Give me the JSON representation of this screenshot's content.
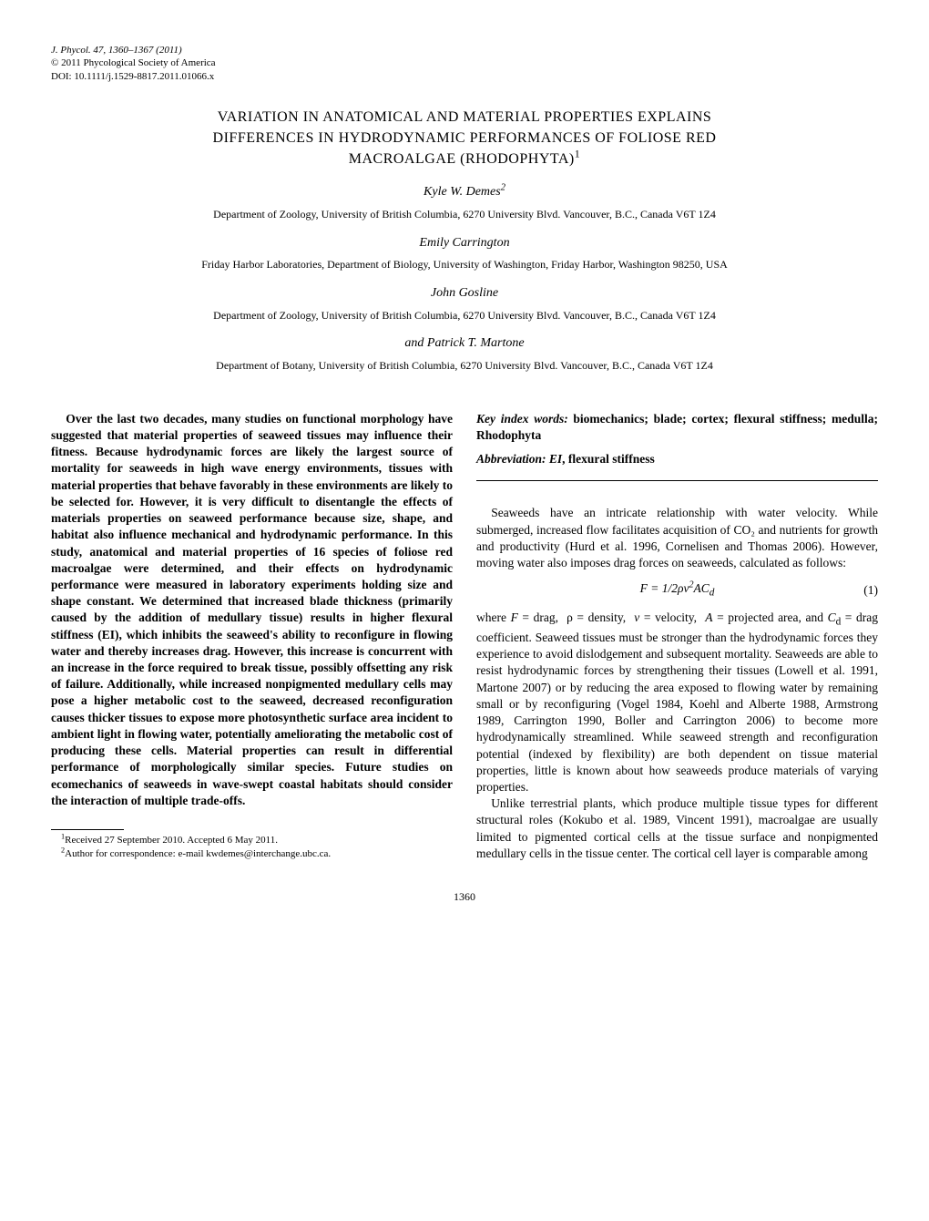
{
  "journal": {
    "citation": "J. Phycol. 47, 1360–1367 (2011)",
    "copyright": "© 2011 Phycological Society of America",
    "doi": "DOI: 10.1111/j.1529-8817.2011.01066.x"
  },
  "title_line1": "VARIATION IN ANATOMICAL AND MATERIAL PROPERTIES EXPLAINS",
  "title_line2": "DIFFERENCES IN HYDRODYNAMIC PERFORMANCES OF FOLIOSE RED",
  "title_line3": "MACROALGAE (RHODOPHYTA)",
  "title_sup": "1",
  "authors": [
    {
      "name": "Kyle W. Demes",
      "sup": "2",
      "affiliation": "Department of Zoology, University of British Columbia, 6270 University Blvd. Vancouver, B.C., Canada V6T 1Z4"
    },
    {
      "name": "Emily Carrington",
      "affiliation": "Friday Harbor Laboratories, Department of Biology, University of Washington, Friday Harbor, Washington 98250, USA"
    },
    {
      "name": "John Gosline",
      "affiliation": "Department of Zoology, University of British Columbia, 6270 University Blvd. Vancouver, B.C., Canada V6T 1Z4"
    }
  ],
  "last_author_connector": "and Patrick T. Martone",
  "last_affiliation": "Department of Botany, University of British Columbia, 6270 University Blvd. Vancouver, B.C., Canada V6T 1Z4",
  "abstract": "Over the last two decades, many studies on functional morphology have suggested that material properties of seaweed tissues may influence their fitness. Because hydrodynamic forces are likely the largest source of mortality for seaweeds in high wave energy environments, tissues with material properties that behave favorably in these environments are likely to be selected for. However, it is very difficult to disentangle the effects of materials properties on seaweed performance because size, shape, and habitat also influence mechanical and hydrodynamic performance. In this study, anatomical and material properties of 16 species of foliose red macroalgae were determined, and their effects on hydrodynamic performance were measured in laboratory experiments holding size and shape constant. We determined that increased blade thickness (primarily caused by the addition of medullary tissue) results in higher flexural stiffness (EI), which inhibits the seaweed's ability to reconfigure in flowing water and thereby increases drag. However, this increase is concurrent with an increase in the force required to break tissue, possibly offsetting any risk of failure. Additionally, while increased nonpigmented medullary cells may pose a higher metabolic cost to the seaweed, decreased reconfiguration causes thicker tissues to expose more photosynthetic surface area incident to ambient light in flowing water, potentially ameliorating the metabolic cost of producing these cells. Material properties can result in differential performance of morphologically similar species. Future studies on ecomechanics of seaweeds in wave-swept coastal habitats should consider the interaction of multiple trade-offs.",
  "keywords": {
    "label": "Key index words:",
    "content": " biomechanics; blade; cortex; flexural stiffness; medulla; Rhodophyta"
  },
  "abbreviation": {
    "label": "Abbreviation:",
    "content_prefix": " ",
    "content_ital": "EI",
    "content_rest": ", flexural stiffness"
  },
  "body": {
    "p1": "Seaweeds have an intricate relationship with water velocity. While submerged, increased flow facilitates acquisition of CO₂ and nutrients for growth and productivity (Hurd et al. 1996, Cornelisen and Thomas 2006). However, moving water also imposes drag forces on seaweeds, calculated as follows:",
    "equation": {
      "text": "F = 1/2ρv²ACd",
      "num": "(1)"
    },
    "p2_pre": "where ",
    "p2_vars": "F = drag, ρ = density, v = velocity, A = projected area, and Cd = drag coefficient.",
    "p2_rest": " Seaweed tissues must be stronger than the hydrodynamic forces they experience to avoid dislodgement and subsequent mortality. Seaweeds are able to resist hydrodynamic forces by strengthening their tissues (Lowell et al. 1991, Martone 2007) or by reducing the area exposed to flowing water by remaining small or by reconfiguring (Vogel 1984, Koehl and Alberte 1988, Armstrong 1989, Carrington 1990, Boller and Carrington 2006) to become more hydrodynamically streamlined. While seaweed strength and reconfiguration potential (indexed by flexibility) are both dependent on tissue material properties, little is known about how seaweeds produce materials of varying properties.",
    "p3": "Unlike terrestrial plants, which produce multiple tissue types for different structural roles (Kokubo et al. 1989, Vincent 1991), macroalgae are usually limited to pigmented cortical cells at the tissue surface and nonpigmented medullary cells in the tissue center. The cortical cell layer is comparable among"
  },
  "footnotes": {
    "f1": "Received 27 September 2010. Accepted 6 May 2011.",
    "f2": "Author for correspondence: e-mail kwdemes@interchange.ubc.ca."
  },
  "page_number": "1360"
}
